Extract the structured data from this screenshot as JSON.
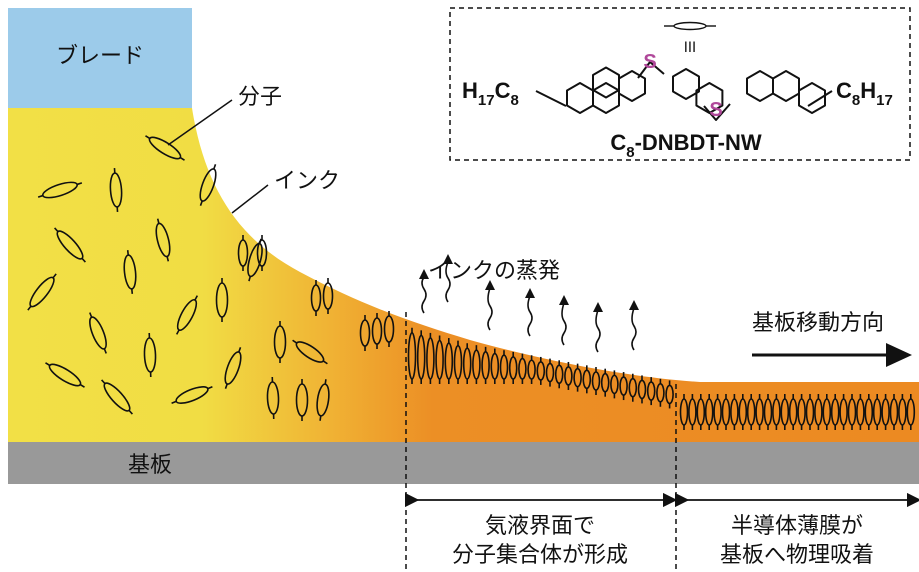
{
  "labels": {
    "blade": "ブレード",
    "molecule": "分子",
    "ink": "インク",
    "evaporation": "インクの蒸発",
    "substrate": "基板",
    "substrate_direction": "基板移動方向",
    "region_interface_line1": "気液界面で",
    "region_interface_line2": "分子集合体が形成",
    "region_film_line1": "半導体薄膜が",
    "region_film_line2": "基板へ物理吸着"
  },
  "structure": {
    "left_sub_main": "H",
    "left_sub_n1": "17",
    "left_sub_c": "C",
    "left_sub_n2": "8",
    "right_sub_c": "C",
    "right_sub_n1": "8",
    "right_sub_h": "H",
    "right_sub_n2": "17",
    "sulfur_top": "S",
    "sulfur_bottom": "S",
    "stack_mark": "III",
    "name_c": "C",
    "name_n": "8",
    "name_rest": "-DNBDT-NW"
  },
  "colors": {
    "blade": "#9ccbea",
    "ink_yellow": "#f2e046",
    "ink_orange": "#ec8a22",
    "substrate": "#999999",
    "sulfur": "#b0489a"
  }
}
